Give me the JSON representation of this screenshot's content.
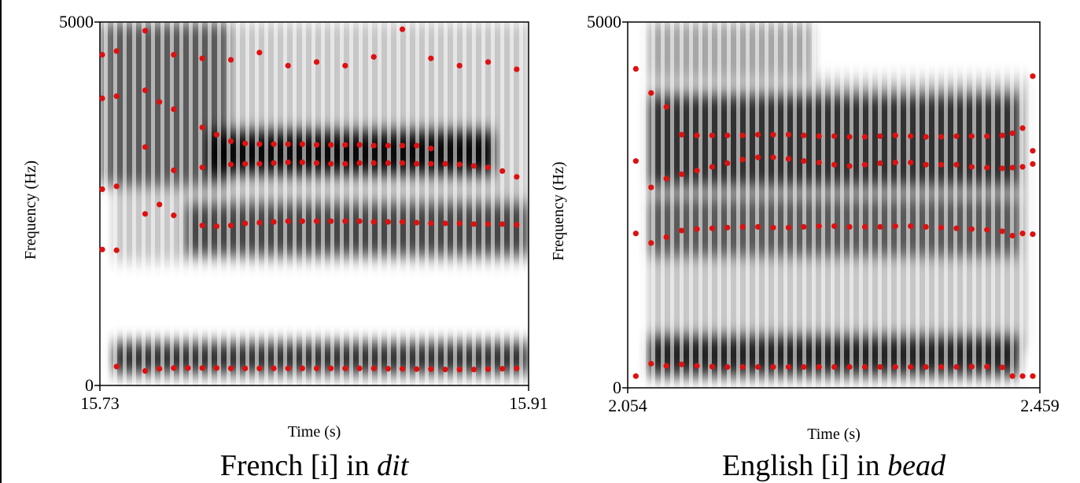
{
  "chart_data": [
    {
      "type": "scatter",
      "xlabel": "Time (s)",
      "ylabel": "Frequency (Hz)",
      "caption": {
        "text": "French [i] in ",
        "emphasis": "dit"
      },
      "xlim": [
        15.73,
        15.91
      ],
      "ylim": [
        0,
        5000
      ],
      "xticks": [
        15.73,
        15.91
      ],
      "yticks": [
        0,
        5000
      ],
      "series": [
        {
          "color": "#e01010",
          "x": [
            15.737,
            15.749,
            15.755,
            15.761,
            15.767,
            15.773,
            15.779,
            15.785,
            15.791,
            15.797,
            15.803,
            15.809,
            15.815,
            15.821,
            15.827,
            15.833,
            15.839,
            15.845,
            15.851,
            15.857,
            15.863,
            15.869,
            15.875,
            15.881,
            15.887,
            15.893,
            15.899,
            15.905
          ],
          "values": [
            260,
            200,
            230,
            240,
            240,
            240,
            240,
            235,
            235,
            235,
            235,
            235,
            235,
            235,
            235,
            235,
            235,
            235,
            230,
            230,
            225,
            225,
            220,
            220,
            220,
            225,
            230,
            235
          ]
        },
        {
          "color": "#e01010",
          "x": [
            15.731,
            15.737,
            15.749,
            15.755,
            15.761,
            15.773,
            15.779,
            15.785,
            15.791,
            15.797,
            15.803,
            15.809,
            15.815,
            15.821,
            15.827,
            15.833,
            15.839,
            15.845,
            15.851,
            15.857,
            15.863,
            15.869,
            15.875,
            15.881,
            15.887,
            15.893,
            15.899,
            15.905
          ],
          "values": [
            1870,
            1860,
            2360,
            2490,
            2340,
            2200,
            2190,
            2200,
            2230,
            2240,
            2250,
            2260,
            2260,
            2260,
            2260,
            2260,
            2260,
            2250,
            2250,
            2250,
            2240,
            2230,
            2230,
            2230,
            2220,
            2220,
            2220,
            2210
          ]
        },
        {
          "color": "#e01010",
          "x": [
            15.731,
            15.737,
            15.749,
            15.761,
            15.773,
            15.785,
            15.791,
            15.797,
            15.803,
            15.809,
            15.815,
            15.821,
            15.827,
            15.833,
            15.839,
            15.845,
            15.851,
            15.857,
            15.863,
            15.869,
            15.875,
            15.881,
            15.887,
            15.893,
            15.899,
            15.905
          ],
          "values": [
            2700,
            2740,
            3280,
            2960,
            3000,
            3040,
            3050,
            3050,
            3060,
            3070,
            3070,
            3060,
            3050,
            3050,
            3060,
            3060,
            3060,
            3060,
            3050,
            3050,
            3050,
            3040,
            3020,
            3000,
            2950,
            2870
          ]
        },
        {
          "color": "#e01010",
          "x": [
            15.731,
            15.737,
            15.749,
            15.755,
            15.761,
            15.773,
            15.779,
            15.785,
            15.791,
            15.797,
            15.803,
            15.809,
            15.815,
            15.821,
            15.827,
            15.833,
            15.839,
            15.845,
            15.851,
            15.857,
            15.863,
            15.869
          ],
          "values": [
            3950,
            3980,
            4060,
            3900,
            3800,
            3550,
            3450,
            3360,
            3330,
            3320,
            3320,
            3320,
            3320,
            3310,
            3310,
            3310,
            3310,
            3300,
            3300,
            3300,
            3300,
            3260
          ]
        },
        {
          "color": "#e01010",
          "x": [
            15.731,
            15.737,
            15.749,
            15.761,
            15.773,
            15.785,
            15.797,
            15.809,
            15.821,
            15.833,
            15.845,
            15.857,
            15.869,
            15.881,
            15.893,
            15.905
          ],
          "values": [
            4550,
            4600,
            4880,
            4550,
            4500,
            4480,
            4580,
            4400,
            4450,
            4400,
            4520,
            4900,
            4500,
            4400,
            4450,
            4350
          ]
        }
      ]
    },
    {
      "type": "scatter",
      "xlabel": "Time (s)",
      "ylabel": "Frequency (Hz)",
      "caption": {
        "text": "English [i] in ",
        "emphasis": "bead"
      },
      "xlim": [
        2.054,
        2.459
      ],
      "ylim": [
        0,
        5000
      ],
      "xticks": [
        2.054,
        2.459
      ],
      "yticks": [
        0,
        5000
      ],
      "series": [
        {
          "color": "#e01010",
          "x": [
            2.062,
            2.077,
            2.092,
            2.107,
            2.122,
            2.137,
            2.152,
            2.167,
            2.182,
            2.197,
            2.212,
            2.227,
            2.242,
            2.257,
            2.272,
            2.287,
            2.302,
            2.317,
            2.332,
            2.347,
            2.362,
            2.377,
            2.392,
            2.407,
            2.422,
            2.432,
            2.442,
            2.452
          ],
          "values": [
            160,
            330,
            300,
            320,
            300,
            290,
            285,
            285,
            285,
            285,
            285,
            285,
            285,
            285,
            285,
            285,
            285,
            285,
            285,
            285,
            285,
            285,
            290,
            290,
            280,
            160,
            160,
            160
          ]
        },
        {
          "color": "#e01010",
          "x": [
            2.062,
            2.077,
            2.092,
            2.107,
            2.122,
            2.137,
            2.152,
            2.167,
            2.182,
            2.197,
            2.212,
            2.227,
            2.242,
            2.257,
            2.272,
            2.287,
            2.302,
            2.317,
            2.332,
            2.347,
            2.362,
            2.377,
            2.392,
            2.407,
            2.422,
            2.432,
            2.442,
            2.452
          ],
          "values": [
            2110,
            1980,
            2060,
            2150,
            2170,
            2180,
            2190,
            2200,
            2200,
            2190,
            2190,
            2200,
            2210,
            2210,
            2200,
            2200,
            2200,
            2210,
            2210,
            2200,
            2190,
            2180,
            2170,
            2160,
            2140,
            2080,
            2110,
            2100
          ]
        },
        {
          "color": "#e01010",
          "x": [
            2.062,
            2.077,
            2.092,
            2.107,
            2.122,
            2.137,
            2.152,
            2.167,
            2.182,
            2.197,
            2.212,
            2.227,
            2.242,
            2.257,
            2.272,
            2.287,
            2.302,
            2.317,
            2.332,
            2.347,
            2.362,
            2.377,
            2.392,
            2.407,
            2.422,
            2.432,
            2.442,
            2.452
          ],
          "values": [
            3100,
            2740,
            2860,
            2920,
            2970,
            3020,
            3070,
            3120,
            3150,
            3150,
            3130,
            3100,
            3080,
            3050,
            3030,
            3050,
            3070,
            3080,
            3080,
            3050,
            3050,
            3050,
            3020,
            3010,
            3000,
            3010,
            3020,
            3060
          ]
        },
        {
          "color": "#e01010",
          "x": [
            2.062,
            2.077,
            2.092,
            2.107,
            2.122,
            2.137,
            2.152,
            2.167,
            2.182,
            2.197,
            2.212,
            2.227,
            2.242,
            2.257,
            2.272,
            2.287,
            2.302,
            2.317,
            2.332,
            2.347,
            2.362,
            2.377,
            2.392,
            2.407,
            2.422,
            2.432,
            2.442,
            2.452
          ],
          "values": [
            4360,
            4030,
            3840,
            3460,
            3450,
            3450,
            3450,
            3450,
            3460,
            3460,
            3460,
            3450,
            3440,
            3440,
            3430,
            3430,
            3440,
            3450,
            3440,
            3430,
            3430,
            3440,
            3440,
            3440,
            3450,
            3480,
            3550,
            3240
          ]
        },
        {
          "color": "#e01010",
          "x": [
            2.452
          ],
          "values": [
            4260
          ]
        }
      ]
    }
  ]
}
